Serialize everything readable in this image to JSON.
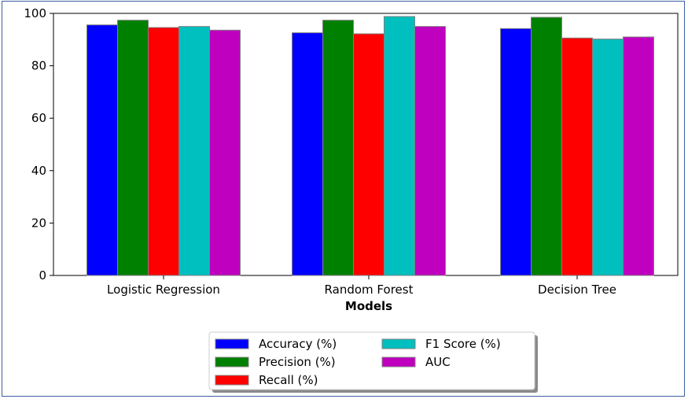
{
  "chart_data": {
    "type": "bar",
    "categories": [
      "Logistic Regression",
      "Random Forest",
      "Decision Tree"
    ],
    "series": [
      {
        "name": "Accuracy (%)",
        "color": "#0000ff",
        "values": [
          95.6,
          92.6,
          94.2
        ]
      },
      {
        "name": "Precision (%)",
        "color": "#008000",
        "values": [
          97.4,
          97.4,
          98.5
        ]
      },
      {
        "name": "Recall (%)",
        "color": "#ff0000",
        "values": [
          94.6,
          92.2,
          90.6
        ]
      },
      {
        "name": "F1 Score (%)",
        "color": "#00bfbf",
        "values": [
          95.0,
          98.8,
          90.2
        ]
      },
      {
        "name": "AUC",
        "color": "#bf00bf",
        "values": [
          93.6,
          95.0,
          91.0
        ]
      }
    ],
    "xlabel": "Models",
    "ylabel": "",
    "ylim": [
      0,
      100
    ],
    "yticks": [
      0,
      20,
      40,
      60,
      80,
      100
    ],
    "grid": false,
    "legend": {
      "placement": "bottom-center",
      "columns": 2
    }
  }
}
